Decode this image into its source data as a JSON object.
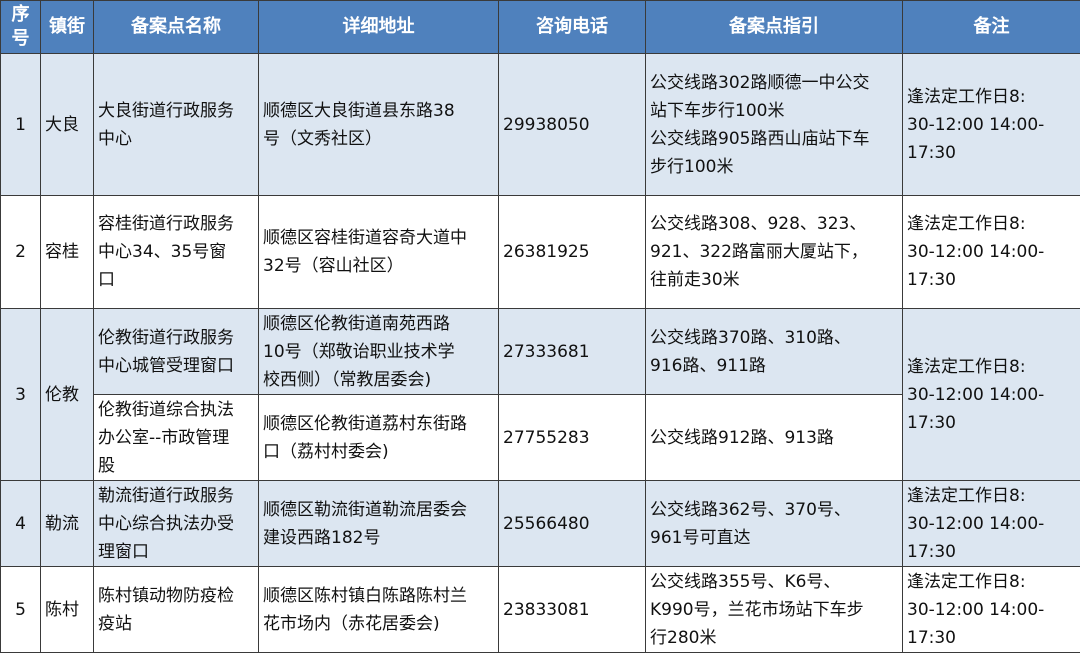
{
  "headers": [
    "序\n号",
    "镇街",
    "备案点名称",
    "详细地址",
    "咨询电话",
    "备案点指引",
    "备注"
  ],
  "rows": [
    {
      "no": "1",
      "town": "大良",
      "name": "大良街道行政服务\n中心",
      "address": "顺德区大良街道县东路38\n号（文秀社区）",
      "phone": "29938050",
      "guide": "公交线路302路顺德一中公交\n站下车步行100米\n公交线路905路西山庙站下车\n步行100米",
      "note": "逢法定工作日8:\n30-12:00 14:00-\n17:30"
    },
    {
      "no": "2",
      "town": "容桂",
      "name": "容桂街道行政服务\n中心34、35号窗\n口",
      "address": "顺德区容桂街道容奇大道中\n32号（容山社区）",
      "phone": "26381925",
      "guide": "公交线路308、928、323、\n921、322路富丽大厦站下，\n往前走30米",
      "note": "逢法定工作日8:\n30-12:00 14:00-\n17:30"
    },
    {
      "no": "3",
      "town": "伦教",
      "name": "伦教街道行政服务\n中心城管受理窗口",
      "address": "顺德区伦教街道南苑西路\n10号（郑敬诒职业技术学\n校西侧）（常教居委会)",
      "phone": "27333681",
      "guide": "公交线路370路、310路、\n916路、911路",
      "note": "逢法定工作日8:\n30-12:00 14:00-\n17:30"
    },
    {
      "name": "伦教街道综合执法\n办公室--市政管理\n股",
      "address": "顺德区伦教街道荔村东街路\n口（荔村村委会)",
      "phone": "27755283",
      "guide": "公交线路912路、913路"
    },
    {
      "no": "4",
      "town": "勒流",
      "name": "勒流街道行政服务\n中心综合执法办受\n理窗口",
      "address": "顺德区勒流街道勒流居委会\n建设西路182号",
      "phone": "25566480",
      "guide": "公交线路362号、370号、\n961号可直达",
      "note": "逢法定工作日8:\n30-12:00 14:00-\n17:30"
    },
    {
      "no": "5",
      "town": "陈村",
      "name": "陈村镇动物防疫检\n疫站",
      "address": "顺德区陈村镇白陈路陈村兰\n花市场内（赤花居委会)",
      "phone": "23833081",
      "guide": "公交线路355号、K6号、\nK990号，兰花市场站下车步\n行280米",
      "note": "逢法定工作日8:\n30-12:00 14:00-\n17:30"
    }
  ],
  "colors": {
    "header": "#4f81bd",
    "band": "#dce6f1"
  }
}
